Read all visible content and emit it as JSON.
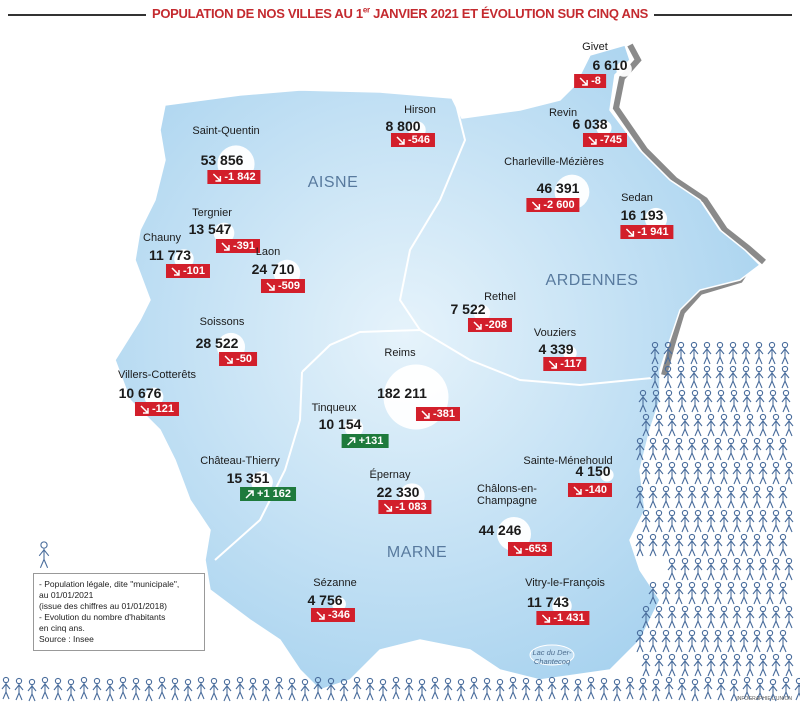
{
  "header": {
    "title_part1": "POPULATION DE NOS VILLES AU 1",
    "title_superscript": "er",
    "title_part2": " JANVIER 2021 ET ÉVOLUTION SUR CINQ ANS"
  },
  "regions": [
    "AISNE",
    "ARDENNES",
    "MARNE"
  ],
  "cities": [
    {
      "name": "Givet",
      "population": "6 610",
      "change": "-8"
    },
    {
      "name": "Revin",
      "population": "6 038",
      "change": "-745"
    },
    {
      "name": "Hirson",
      "population": "8 800",
      "change": "-546"
    },
    {
      "name": "Saint-Quentin",
      "population": "53 856",
      "change": "-1 842"
    },
    {
      "name": "Charleville-Mézières",
      "population": "46 391",
      "change": "-2 600"
    },
    {
      "name": "Sedan",
      "population": "16 193",
      "change": "-1 941"
    },
    {
      "name": "Tergnier",
      "population": "13 547",
      "change": "-391"
    },
    {
      "name": "Chauny",
      "population": "11 773",
      "change": "-101"
    },
    {
      "name": "Laon",
      "population": "24 710",
      "change": "-509"
    },
    {
      "name": "Rethel",
      "population": "7 522",
      "change": "-208"
    },
    {
      "name": "Vouziers",
      "population": "4 339",
      "change": "-117"
    },
    {
      "name": "Soissons",
      "population": "28 522",
      "change": "-50"
    },
    {
      "name": "Reims",
      "population": "182 211",
      "change": "-381"
    },
    {
      "name": "Villers-Cotterêts",
      "population": "10 676",
      "change": "-121"
    },
    {
      "name": "Tinqueux",
      "population": "10 154",
      "change": "+131"
    },
    {
      "name": "Château-Thierry",
      "population": "15 351",
      "change": "+1 162"
    },
    {
      "name": "Sainte-Ménehould",
      "population": "4 150",
      "change": "-140"
    },
    {
      "name": "Épernay",
      "population": "22 330",
      "change": "-1 083"
    },
    {
      "name": "Châlons-en-Champagne",
      "population": "44 246",
      "change": "-653"
    },
    {
      "name": "Sézanne",
      "population": "4 756",
      "change": "-346"
    },
    {
      "name": "Vitry-le-François",
      "population": "11 743",
      "change": "-1 431"
    }
  ],
  "legend": {
    "lines": [
      "- Population légale, dite \"municipale\",",
      "au 01/01/2021",
      "(issue des chiffres au 01/01/2018)",
      "- Evolution du nombre d'habitants",
      "en cinq ans."
    ],
    "source": "Source : Insee"
  },
  "lake": "Lac du Der-Chantecoq",
  "credit": "INFOGRAPHIE L'UNION"
}
